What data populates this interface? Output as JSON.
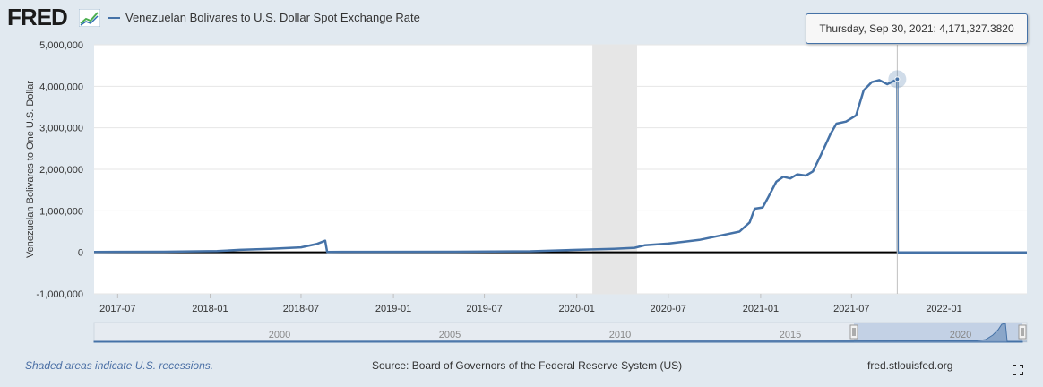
{
  "header": {
    "logo_text": "FRED",
    "series_label": "Venezuelan Bolivares to U.S. Dollar Spot Exchange Rate",
    "series_color": "#4572a7"
  },
  "tooltip": {
    "date": "Thursday, Sep 30, 2021:",
    "value": "4,171,327.3820"
  },
  "footer": {
    "recession_note": "Shaded areas indicate U.S. recessions.",
    "source": "Source: Board of Governors of the Federal Reserve System (US)",
    "url": "fred.stlouisfed.org",
    "fullscreen_icon": "expand-icon"
  },
  "navigator": {
    "year_labels": [
      "2000",
      "2005",
      "2010",
      "2015",
      "2020"
    ]
  },
  "chart_data": {
    "type": "line",
    "title": "Venezuelan Bolivares to U.S. Dollar Spot Exchange Rate",
    "ylabel": "Venezuelan Bolivares to One U.S. Dollar",
    "xlabel": "",
    "ylim": [
      -1000000,
      5000000
    ],
    "xlim": [
      "2017-05-15",
      "2022-06-15"
    ],
    "y_ticks": [
      "-1,000,000",
      "0",
      "1,000,000",
      "2,000,000",
      "3,000,000",
      "4,000,000",
      "5,000,000"
    ],
    "x_ticks": [
      "2017-07",
      "2018-01",
      "2018-07",
      "2019-01",
      "2019-07",
      "2020-01",
      "2020-07",
      "2021-01",
      "2021-07",
      "2022-01"
    ],
    "grid": true,
    "recession": [
      "2020-02-01",
      "2020-04-30"
    ],
    "series": [
      {
        "name": "Venezuelan Bolivares to U.S. Dollar Spot Exchange Rate",
        "color": "#4572a7",
        "points": [
          [
            "2017-05-15",
            10000
          ],
          [
            "2017-10-01",
            15000
          ],
          [
            "2018-01-15",
            30000
          ],
          [
            "2018-03-01",
            60000
          ],
          [
            "2018-05-01",
            85000
          ],
          [
            "2018-07-01",
            120000
          ],
          [
            "2018-08-01",
            200000
          ],
          [
            "2018-08-18",
            280000
          ],
          [
            "2018-08-22",
            10000
          ],
          [
            "2018-11-01",
            12000
          ],
          [
            "2019-05-01",
            15000
          ],
          [
            "2019-10-01",
            25000
          ],
          [
            "2020-01-01",
            60000
          ],
          [
            "2020-03-15",
            85000
          ],
          [
            "2020-04-25",
            110000
          ],
          [
            "2020-05-15",
            170000
          ],
          [
            "2020-07-01",
            210000
          ],
          [
            "2020-09-01",
            300000
          ],
          [
            "2020-10-15",
            410000
          ],
          [
            "2020-11-20",
            500000
          ],
          [
            "2020-12-10",
            720000
          ],
          [
            "2020-12-20",
            1050000
          ],
          [
            "2021-01-05",
            1080000
          ],
          [
            "2021-01-15",
            1300000
          ],
          [
            "2021-02-01",
            1700000
          ],
          [
            "2021-02-15",
            1820000
          ],
          [
            "2021-03-01",
            1780000
          ],
          [
            "2021-03-15",
            1880000
          ],
          [
            "2021-04-01",
            1850000
          ],
          [
            "2021-04-15",
            1950000
          ],
          [
            "2021-05-01",
            2350000
          ],
          [
            "2021-05-20",
            2850000
          ],
          [
            "2021-06-01",
            3100000
          ],
          [
            "2021-06-20",
            3150000
          ],
          [
            "2021-07-10",
            3300000
          ],
          [
            "2021-07-25",
            3900000
          ],
          [
            "2021-08-10",
            4100000
          ],
          [
            "2021-08-25",
            4150000
          ],
          [
            "2021-09-10",
            4050000
          ],
          [
            "2021-09-30",
            4171327.382
          ],
          [
            "2021-10-01",
            4.2
          ],
          [
            "2022-06-15",
            4.6
          ]
        ]
      }
    ]
  }
}
